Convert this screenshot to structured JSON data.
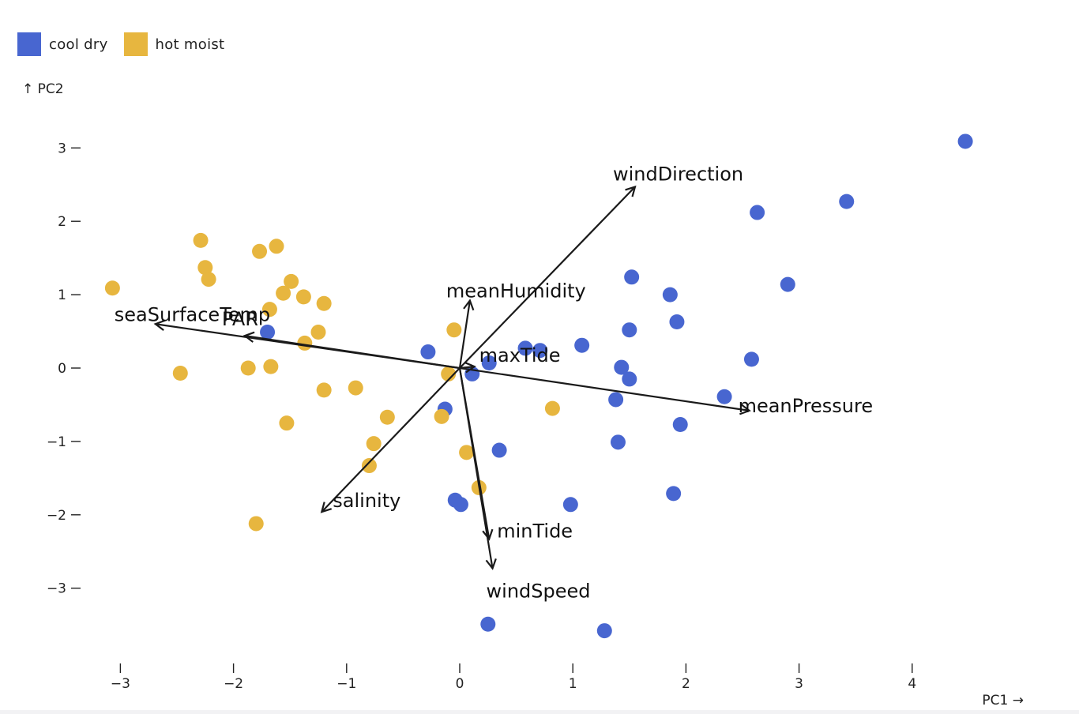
{
  "legend": {
    "items": [
      {
        "label": "cool dry",
        "color": "#4866d0"
      },
      {
        "label": "hot moist",
        "color": "#e7b63f"
      }
    ]
  },
  "chart_data": {
    "type": "scatter",
    "title": "",
    "xlabel": "PC1 →",
    "ylabel": "↑ PC2",
    "xlim": [
      -3.3,
      5.0
    ],
    "ylim": [
      -3.9,
      3.4
    ],
    "x_ticks": [
      -3,
      -2,
      -1,
      0,
      1,
      2,
      3,
      4
    ],
    "x_tick_labels": [
      "−3",
      "−2",
      "−1",
      "0",
      "1",
      "2",
      "3",
      "4"
    ],
    "y_ticks": [
      3,
      2,
      1,
      0,
      -1,
      -2,
      -3
    ],
    "y_tick_labels": [
      "3",
      "2",
      "1",
      "0",
      "−1",
      "−2",
      "−3"
    ],
    "series": [
      {
        "name": "cool dry",
        "color": "#4866d0",
        "points": [
          [
            4.47,
            3.09
          ],
          [
            3.42,
            2.27
          ],
          [
            2.63,
            2.12
          ],
          [
            2.9,
            1.14
          ],
          [
            1.52,
            1.24
          ],
          [
            1.86,
            1.0
          ],
          [
            1.92,
            0.63
          ],
          [
            1.5,
            0.52
          ],
          [
            1.08,
            0.31
          ],
          [
            2.58,
            0.12
          ],
          [
            1.43,
            0.01
          ],
          [
            1.5,
            -0.15
          ],
          [
            2.34,
            -0.39
          ],
          [
            1.38,
            -0.43
          ],
          [
            1.95,
            -0.77
          ],
          [
            1.4,
            -1.01
          ],
          [
            1.89,
            -1.71
          ],
          [
            0.98,
            -1.86
          ],
          [
            0.35,
            -1.12
          ],
          [
            -0.28,
            0.22
          ],
          [
            0.58,
            0.27
          ],
          [
            0.71,
            0.24
          ],
          [
            0.26,
            0.07
          ],
          [
            0.11,
            -0.08
          ],
          [
            -0.13,
            -0.56
          ],
          [
            -0.04,
            -1.8
          ],
          [
            0.01,
            -1.86
          ],
          [
            0.25,
            -3.49
          ],
          [
            1.28,
            -3.58
          ],
          [
            -1.7,
            0.49
          ]
        ]
      },
      {
        "name": "hot moist",
        "color": "#e7b63f",
        "points": [
          [
            -3.07,
            1.09
          ],
          [
            -2.29,
            1.74
          ],
          [
            -2.25,
            1.37
          ],
          [
            -2.22,
            1.21
          ],
          [
            -1.77,
            1.59
          ],
          [
            -1.62,
            1.66
          ],
          [
            -1.49,
            1.18
          ],
          [
            -1.56,
            1.02
          ],
          [
            -1.38,
            0.97
          ],
          [
            -1.2,
            0.88
          ],
          [
            -1.68,
            0.8
          ],
          [
            -1.25,
            0.49
          ],
          [
            -1.37,
            0.34
          ],
          [
            -2.47,
            -0.07
          ],
          [
            -1.87,
            0.0
          ],
          [
            -1.67,
            0.02
          ],
          [
            -1.2,
            -0.3
          ],
          [
            -0.92,
            -0.27
          ],
          [
            -0.64,
            -0.67
          ],
          [
            -1.53,
            -0.75
          ],
          [
            -0.76,
            -1.03
          ],
          [
            -0.8,
            -1.33
          ],
          [
            -1.8,
            -2.12
          ],
          [
            -0.05,
            0.52
          ],
          [
            -0.1,
            -0.08
          ],
          [
            -0.16,
            -0.66
          ],
          [
            0.06,
            -1.15
          ],
          [
            0.17,
            -1.63
          ],
          [
            0.82,
            -0.55
          ]
        ]
      }
    ],
    "vectors": [
      {
        "name": "windDirection",
        "x": 1.55,
        "y": 2.47
      },
      {
        "name": "meanHumidity",
        "x": 0.09,
        "y": 0.92
      },
      {
        "name": "maxTide",
        "x": 0.13,
        "y": 0.02
      },
      {
        "name": "meanPressure",
        "x": 2.56,
        "y": -0.58
      },
      {
        "name": "seaSurfaceTemp",
        "x": -2.69,
        "y": 0.6
      },
      {
        "name": "PAR",
        "x": -1.9,
        "y": 0.44
      },
      {
        "name": "salinity",
        "x": -1.22,
        "y": -1.96
      },
      {
        "name": "minTide",
        "x": 0.26,
        "y": -2.33
      },
      {
        "name": "windSpeed",
        "x": 0.29,
        "y": -2.73
      }
    ]
  }
}
